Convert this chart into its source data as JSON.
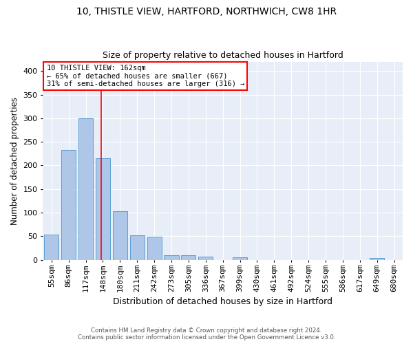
{
  "title_line1": "10, THISTLE VIEW, HARTFORD, NORTHWICH, CW8 1HR",
  "title_line2": "Size of property relative to detached houses in Hartford",
  "xlabel": "Distribution of detached houses by size in Hartford",
  "ylabel": "Number of detached properties",
  "bin_labels": [
    "55sqm",
    "86sqm",
    "117sqm",
    "148sqm",
    "180sqm",
    "211sqm",
    "242sqm",
    "273sqm",
    "305sqm",
    "336sqm",
    "367sqm",
    "399sqm",
    "430sqm",
    "461sqm",
    "492sqm",
    "524sqm",
    "555sqm",
    "586sqm",
    "617sqm",
    "649sqm",
    "680sqm"
  ],
  "bar_values": [
    53,
    232,
    300,
    215,
    103,
    52,
    49,
    10,
    9,
    6,
    0,
    5,
    0,
    0,
    0,
    0,
    0,
    0,
    0,
    4,
    0
  ],
  "bar_color": "#aec6e8",
  "bar_edge_color": "#5a9fd4",
  "annotation_text": "10 THISTLE VIEW: 162sqm\n← 65% of detached houses are smaller (667)\n31% of semi-detached houses are larger (316) →",
  "annotation_box_color": "white",
  "annotation_box_edge": "red",
  "ylim": [
    0,
    420
  ],
  "yticks": [
    0,
    50,
    100,
    150,
    200,
    250,
    300,
    350,
    400
  ],
  "background_color": "#e8eef7",
  "grid_color": "white",
  "footer_line1": "Contains HM Land Registry data © Crown copyright and database right 2024.",
  "footer_line2": "Contains public sector information licensed under the Open Government Licence v3.0."
}
